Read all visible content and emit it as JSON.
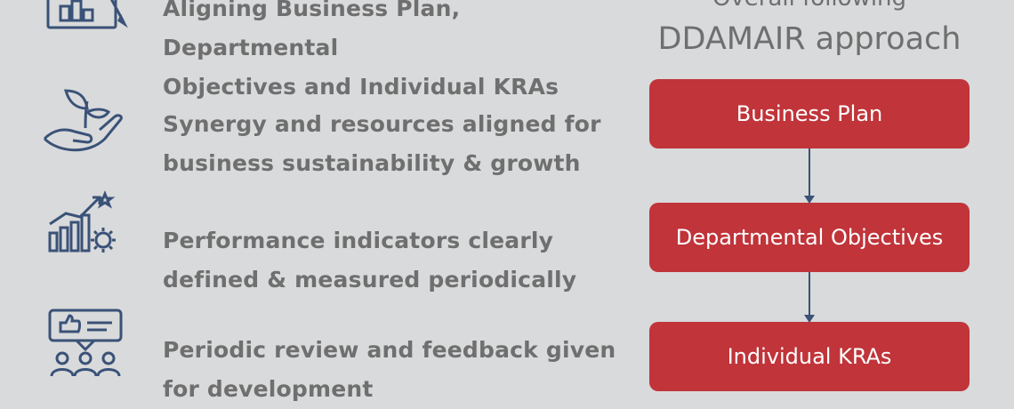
{
  "left_items": [
    {
      "icon": "business-plan-document-icon",
      "text": "Aligning Business Plan, Departmental\nObjectives and Individual KRAs"
    },
    {
      "icon": "plant-in-hand-icon",
      "text": "Synergy and resources aligned for\nbusiness sustainability & growth"
    },
    {
      "icon": "performance-chart-gear-icon",
      "text": "Performance indicators clearly\ndefined & measured periodically"
    },
    {
      "icon": "feedback-team-icon",
      "text": "Periodic review and feedback given\nfor development"
    }
  ],
  "right": {
    "heading_line1": "Overall following",
    "heading_line2": "DDAMAIR approach",
    "boxes": [
      "Business Plan",
      "Departmental Objectives",
      "Individual KRAs"
    ]
  },
  "colors": {
    "background": "#d9dadb",
    "text": "#6f6f6f",
    "box_fill": "#c0343a",
    "box_text": "#ffffff",
    "icon_and_arrow": "#3a5278"
  }
}
